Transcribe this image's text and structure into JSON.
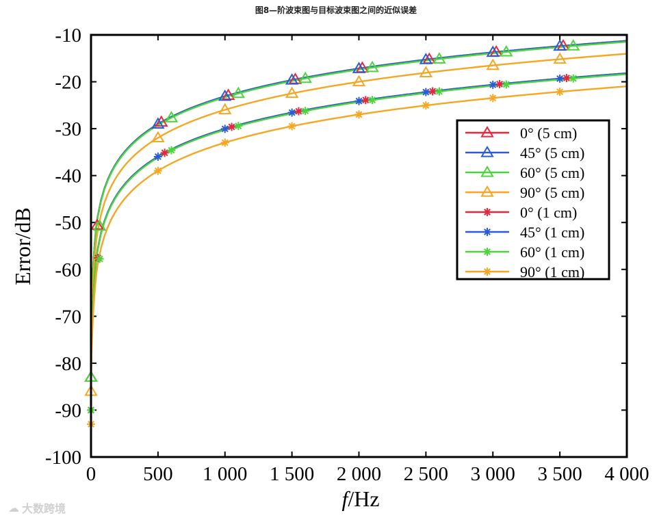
{
  "figure_title": "图8—阶波束图与目标波束图之间的近似误差",
  "watermark": "大数跨境",
  "chart_data": {
    "type": "line",
    "xlabel_italic": "f",
    "xlabel_unit": "/Hz",
    "ylabel": "Error/dB",
    "xlim": [
      0,
      4000
    ],
    "ylim": [
      -100,
      -10
    ],
    "xticks": [
      0,
      500,
      1000,
      1500,
      2000,
      2500,
      3000,
      3500,
      4000
    ],
    "xtick_labels": [
      "0",
      "500",
      "1 000",
      "1 500",
      "2 000",
      "2 500",
      "3 000",
      "3 500",
      "4 000"
    ],
    "yticks": [
      -10,
      -20,
      -30,
      -40,
      -50,
      -60,
      -70,
      -80,
      -90,
      -100
    ],
    "ytick_labels": [
      "-10",
      "-20",
      "-30",
      "-40",
      "-50",
      "-60",
      "-70",
      "-80",
      "-90",
      "-100"
    ],
    "legend_position": "right",
    "series": [
      {
        "name": "0°  (5 cm)",
        "color": "#e8263c",
        "marker": "triangle",
        "offset": 25,
        "x": [
          0,
          500,
          1000,
          1500,
          2000,
          2500,
          3000,
          3500,
          4000
        ],
        "values": [
          -83,
          -29,
          -23.2,
          -19.6,
          -17.2,
          -15.2,
          -13.6,
          -12.4,
          -11.4
        ]
      },
      {
        "name": "45°  (5 cm)",
        "color": "#2a5bd7",
        "marker": "triangle",
        "offset": 0,
        "x": [
          0,
          500,
          1000,
          1500,
          2000,
          2500,
          3000,
          3500,
          4000
        ],
        "values": [
          -83,
          -29,
          -23.2,
          -19.6,
          -17.2,
          -15.2,
          -13.6,
          -12.4,
          -11.4
        ]
      },
      {
        "name": "60°  (5 cm)",
        "color": "#4cd43c",
        "marker": "triangle",
        "offset": 100,
        "x": [
          0,
          500,
          1000,
          1500,
          2000,
          2500,
          3000,
          3500,
          4000
        ],
        "values": [
          -83,
          -29.2,
          -23.4,
          -19.8,
          -17.4,
          -15.4,
          -13.8,
          -12.6,
          -11.6
        ]
      },
      {
        "name": "90°  (5 cm)",
        "color": "#f5a623",
        "marker": "triangle",
        "offset": 0,
        "x": [
          0,
          500,
          1000,
          1500,
          2000,
          2500,
          3000,
          3500,
          4000
        ],
        "values": [
          -86,
          -32,
          -26,
          -22.4,
          -20,
          -18,
          -16.4,
          -15.2,
          -14.2
        ]
      },
      {
        "name": "0°  (1 cm)",
        "color": "#e8263c",
        "marker": "asterisk",
        "offset": 50,
        "x": [
          0,
          500,
          1000,
          1500,
          2000,
          2500,
          3000,
          3500,
          4000
        ],
        "values": [
          -90,
          -36,
          -30,
          -26.6,
          -24,
          -22.2,
          -20.6,
          -19.4,
          -18.2
        ]
      },
      {
        "name": "45°  (1 cm)",
        "color": "#2a5bd7",
        "marker": "asterisk",
        "offset": 0,
        "x": [
          0,
          500,
          1000,
          1500,
          2000,
          2500,
          3000,
          3500,
          4000
        ],
        "values": [
          -90,
          -36,
          -30,
          -26.6,
          -24,
          -22.2,
          -20.6,
          -19.4,
          -18.2
        ]
      },
      {
        "name": "60°  (1 cm)",
        "color": "#4cd43c",
        "marker": "asterisk",
        "offset": 100,
        "x": [
          0,
          500,
          1000,
          1500,
          2000,
          2500,
          3000,
          3500,
          4000
        ],
        "values": [
          -90,
          -36.2,
          -30.2,
          -26.8,
          -24.2,
          -22.4,
          -20.8,
          -19.6,
          -18.4
        ]
      },
      {
        "name": "90°  (1 cm)",
        "color": "#f5a623",
        "marker": "asterisk",
        "offset": 0,
        "x": [
          0,
          500,
          1000,
          1500,
          2000,
          2500,
          3000,
          3500,
          4000
        ],
        "values": [
          -93,
          -39,
          -33,
          -29.4,
          -27,
          -25,
          -23.4,
          -22.2,
          -21
        ]
      }
    ]
  }
}
